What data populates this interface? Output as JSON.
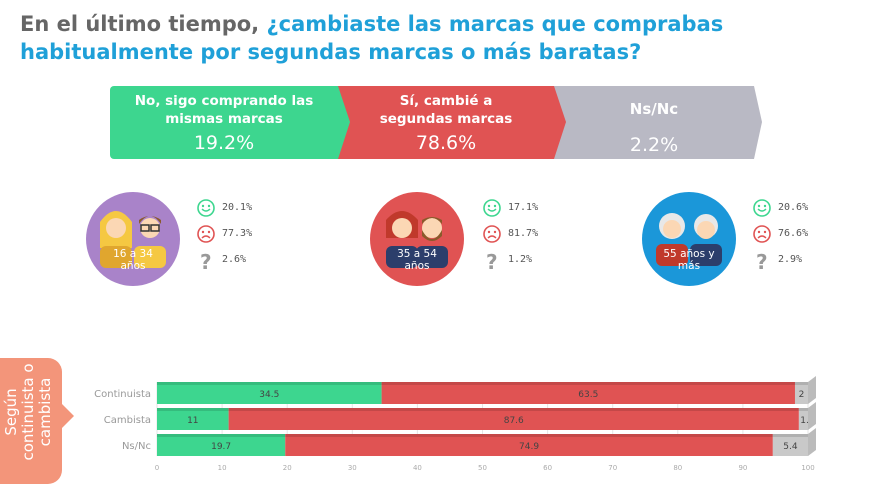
{
  "title": {
    "part1": "En el último tiempo, ",
    "part2": "¿cambiaste las marcas que comprabas habitualmente por segundas marcas o más baratas?"
  },
  "summary": [
    {
      "label": "No, sigo comprando las mismas marcas",
      "value": "19.2%"
    },
    {
      "label": "Sí, cambié a segundas marcas",
      "value": "78.6%"
    },
    {
      "label": "Ns/Nc",
      "value": "2.2%"
    }
  ],
  "age_groups": [
    {
      "label": "16 a 34 años",
      "color": "#a983c9",
      "happy": "20.1%",
      "sad": "77.3%",
      "unknown": "2.6%"
    },
    {
      "label": "35 a 54 años",
      "color": "#e05353",
      "happy": "17.1%",
      "sad": "81.7%",
      "unknown": "1.2%"
    },
    {
      "label": "55 años y más",
      "color": "#1b97d9",
      "happy": "20.6%",
      "sad": "76.6%",
      "unknown": "2.9%"
    }
  ],
  "side_label": "Según continuista o cambista",
  "icons": {
    "happy": "happy-face-icon",
    "sad": "sad-face-icon",
    "unknown": "question-mark-icon"
  },
  "colors": {
    "green": "#3dd68f",
    "red": "#e05353",
    "gray": "#c9c9c9",
    "blue": "#1fa0d8",
    "title_gray": "#666666"
  },
  "chart_data": {
    "type": "bar",
    "orientation": "horizontal",
    "stacked": true,
    "categories": [
      "Continuista",
      "Cambista",
      "Ns/Nc"
    ],
    "series": [
      {
        "values": [
          34.5,
          11,
          19.7
        ],
        "color": "#3dd68f"
      },
      {
        "values": [
          63.5,
          87.6,
          74.9
        ],
        "color": "#e05353"
      },
      {
        "values": [
          2,
          1.4,
          5.4
        ],
        "color": "#c9c9c9"
      }
    ],
    "xlim": [
      0,
      100
    ],
    "xticks": [
      0,
      10,
      20,
      30,
      40,
      50,
      60,
      70,
      80,
      90,
      100
    ]
  }
}
